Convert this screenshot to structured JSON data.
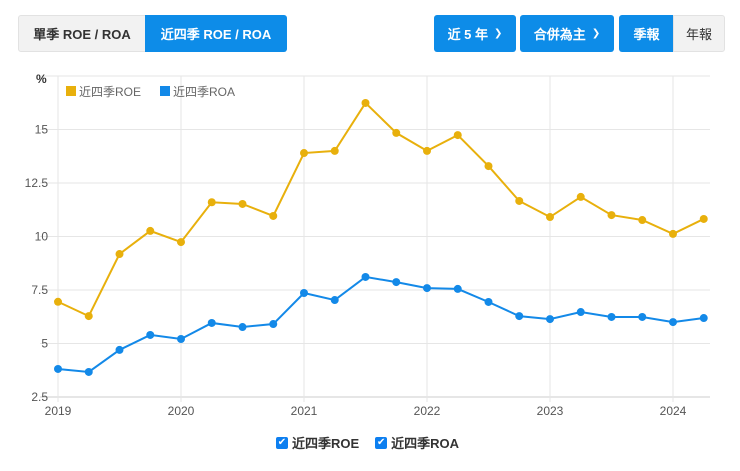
{
  "toolbar": {
    "single_quarter": "單季 ROE / ROA",
    "trailing_four": "近四季 ROE / ROA",
    "period": "近 5 年",
    "scope": "合併為主",
    "quarterly": "季報",
    "annual": "年報"
  },
  "colors": {
    "roe": "#e8b00c",
    "roa": "#1389e8",
    "active": "#0d8ce8"
  },
  "chart_data": {
    "type": "line",
    "ylabel": "%",
    "ylim": [
      2.5,
      17.5
    ],
    "yticks": [
      "2.5",
      "5",
      "7.5",
      "10",
      "12.5",
      "15"
    ],
    "xticks": [
      "2019",
      "2020",
      "2021",
      "2022",
      "2023",
      "2024"
    ],
    "x": [
      "2019Q1",
      "2019Q2",
      "2019Q3",
      "2019Q4",
      "2020Q1",
      "2020Q2",
      "2020Q3",
      "2020Q4",
      "2021Q1",
      "2021Q2",
      "2021Q3",
      "2021Q4",
      "2022Q1",
      "2022Q2",
      "2022Q3",
      "2022Q4",
      "2023Q1",
      "2023Q2",
      "2023Q3",
      "2023Q4",
      "2024Q1",
      "2024Q2"
    ],
    "legend": "top-left",
    "grid": true,
    "series": [
      {
        "name": "近四季ROE",
        "values": [
          6.95,
          6.28,
          9.18,
          10.26,
          9.74,
          11.6,
          11.52,
          10.96,
          13.9,
          14.0,
          16.24,
          14.84,
          14.0,
          14.74,
          13.29,
          11.66,
          10.91,
          11.85,
          11.0,
          10.77,
          10.12,
          10.82
        ]
      },
      {
        "name": "近四季ROA",
        "values": [
          3.81,
          3.67,
          4.7,
          5.4,
          5.21,
          5.96,
          5.77,
          5.91,
          7.36,
          7.03,
          8.11,
          7.87,
          7.59,
          7.55,
          6.94,
          6.28,
          6.14,
          6.47,
          6.24,
          6.24,
          6.0,
          6.19
        ]
      }
    ]
  }
}
